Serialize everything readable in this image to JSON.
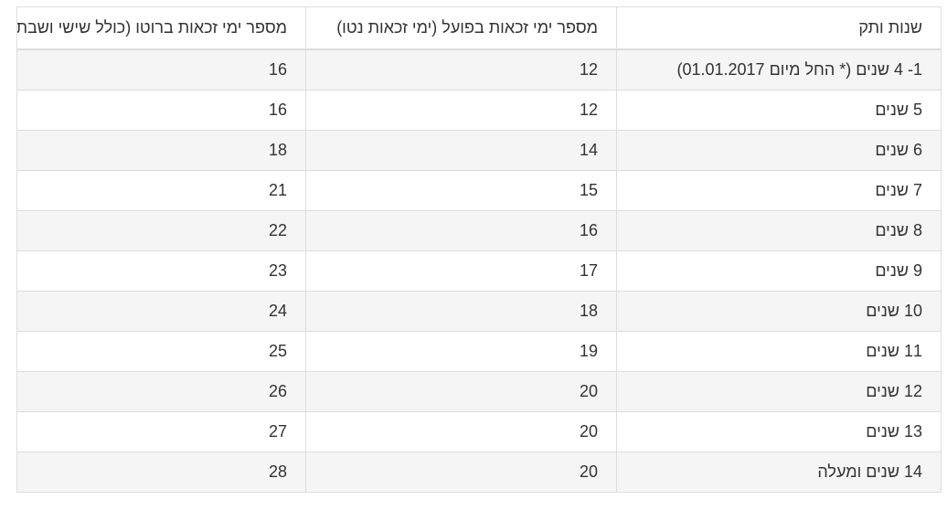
{
  "table": {
    "headers": [
      "שנות ותק",
      "מספר ימי זכאות בפועל (ימי זכאות נטו)",
      "מספר ימי זכאות ברוטו (כולל שישי ושבת)"
    ],
    "rows": [
      [
        "1- 4 שנים (* החל מיום 01.01.2017)",
        "12",
        "16"
      ],
      [
        "5 שנים",
        "12",
        "16"
      ],
      [
        "6 שנים",
        "14",
        "18"
      ],
      [
        "7 שנים",
        "15",
        "21"
      ],
      [
        "8 שנים",
        "16",
        "22"
      ],
      [
        "9 שנים",
        "17",
        "23"
      ],
      [
        "10 שנים",
        "18",
        "24"
      ],
      [
        "11 שנים",
        "19",
        "25"
      ],
      [
        "12 שנים",
        "20",
        "26"
      ],
      [
        "13 שנים",
        "20",
        "27"
      ],
      [
        "14 שנים ומעלה",
        "20",
        "28"
      ]
    ]
  }
}
